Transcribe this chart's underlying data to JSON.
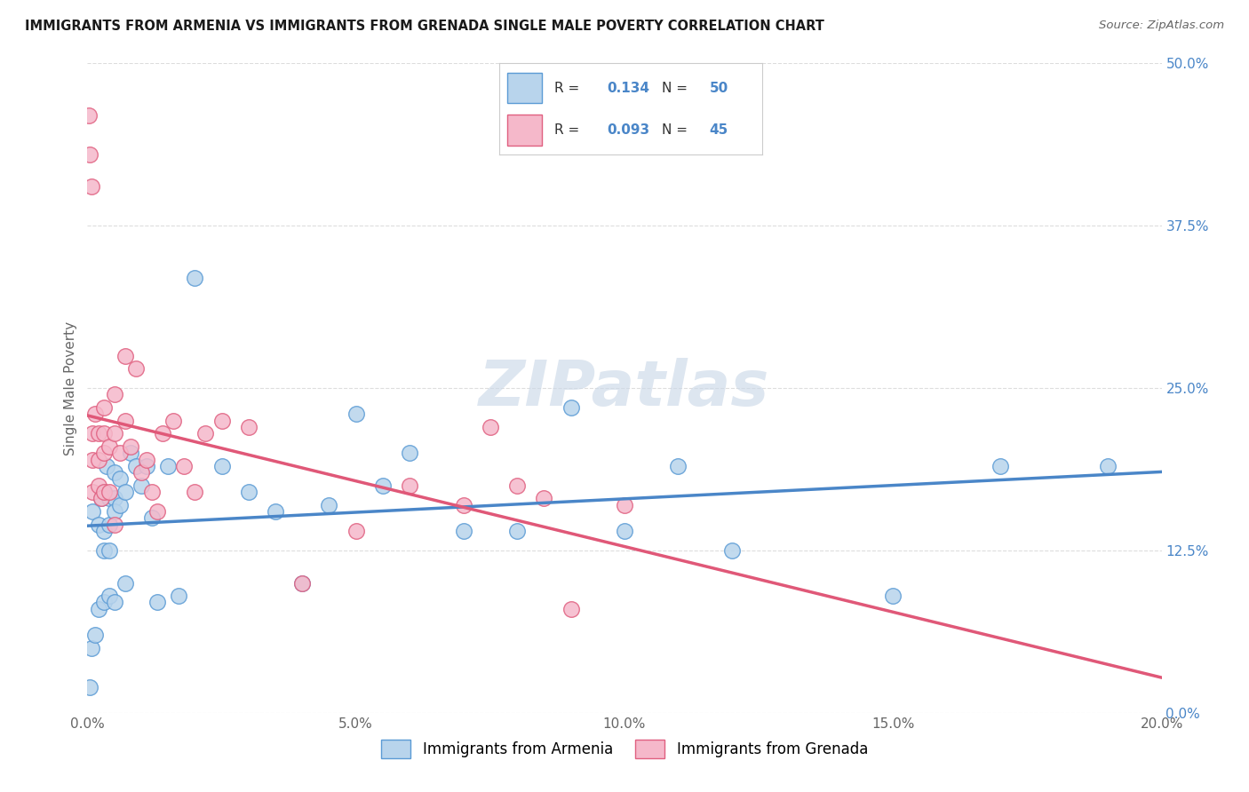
{
  "title": "IMMIGRANTS FROM ARMENIA VS IMMIGRANTS FROM GRENADA SINGLE MALE POVERTY CORRELATION CHART",
  "source": "Source: ZipAtlas.com",
  "ylabel": "Single Male Poverty",
  "xlim": [
    0.0,
    0.2
  ],
  "ylim": [
    0.0,
    0.5
  ],
  "armenia_R": "0.134",
  "armenia_N": "50",
  "grenada_R": "0.093",
  "grenada_N": "45",
  "armenia_fill": "#b8d4ec",
  "grenada_fill": "#f5b8ca",
  "armenia_edge": "#5b9bd5",
  "grenada_edge": "#e06080",
  "blue_line": "#4a86c8",
  "pink_line": "#e05878",
  "dash_line": "#ccaaaa",
  "watermark": "ZIPatlas",
  "watermark_color": "#ccd9e8",
  "bg": "#ffffff",
  "grid_color": "#dddddd",
  "title_color": "#1a1a1a",
  "label_color": "#666666",
  "legend_text_color": "#333333",
  "blue_number_color": "#4a86c8",
  "armenia_x": [
    0.0005,
    0.0008,
    0.001,
    0.0015,
    0.002,
    0.002,
    0.0025,
    0.003,
    0.003,
    0.003,
    0.003,
    0.0035,
    0.004,
    0.004,
    0.004,
    0.004,
    0.005,
    0.005,
    0.005,
    0.005,
    0.006,
    0.006,
    0.007,
    0.007,
    0.008,
    0.009,
    0.01,
    0.011,
    0.012,
    0.013,
    0.015,
    0.017,
    0.02,
    0.025,
    0.03,
    0.035,
    0.04,
    0.045,
    0.05,
    0.055,
    0.06,
    0.07,
    0.08,
    0.09,
    0.1,
    0.11,
    0.12,
    0.15,
    0.17,
    0.19
  ],
  "armenia_y": [
    0.02,
    0.05,
    0.155,
    0.06,
    0.145,
    0.08,
    0.165,
    0.17,
    0.14,
    0.125,
    0.085,
    0.19,
    0.165,
    0.145,
    0.125,
    0.09,
    0.185,
    0.165,
    0.155,
    0.085,
    0.18,
    0.16,
    0.17,
    0.1,
    0.2,
    0.19,
    0.175,
    0.19,
    0.15,
    0.085,
    0.19,
    0.09,
    0.335,
    0.19,
    0.17,
    0.155,
    0.1,
    0.16,
    0.23,
    0.175,
    0.2,
    0.14,
    0.14,
    0.235,
    0.14,
    0.19,
    0.125,
    0.09,
    0.19,
    0.19
  ],
  "grenada_x": [
    0.0003,
    0.0005,
    0.0007,
    0.001,
    0.001,
    0.001,
    0.0015,
    0.002,
    0.002,
    0.002,
    0.0025,
    0.003,
    0.003,
    0.003,
    0.003,
    0.004,
    0.004,
    0.005,
    0.005,
    0.005,
    0.006,
    0.007,
    0.007,
    0.008,
    0.009,
    0.01,
    0.011,
    0.012,
    0.013,
    0.014,
    0.016,
    0.018,
    0.02,
    0.022,
    0.025,
    0.03,
    0.04,
    0.05,
    0.06,
    0.07,
    0.075,
    0.08,
    0.085,
    0.09,
    0.1
  ],
  "grenada_y": [
    0.46,
    0.43,
    0.405,
    0.215,
    0.195,
    0.17,
    0.23,
    0.215,
    0.195,
    0.175,
    0.165,
    0.235,
    0.215,
    0.2,
    0.17,
    0.205,
    0.17,
    0.245,
    0.215,
    0.145,
    0.2,
    0.275,
    0.225,
    0.205,
    0.265,
    0.185,
    0.195,
    0.17,
    0.155,
    0.215,
    0.225,
    0.19,
    0.17,
    0.215,
    0.225,
    0.22,
    0.1,
    0.14,
    0.175,
    0.16,
    0.22,
    0.175,
    0.165,
    0.08,
    0.16
  ]
}
